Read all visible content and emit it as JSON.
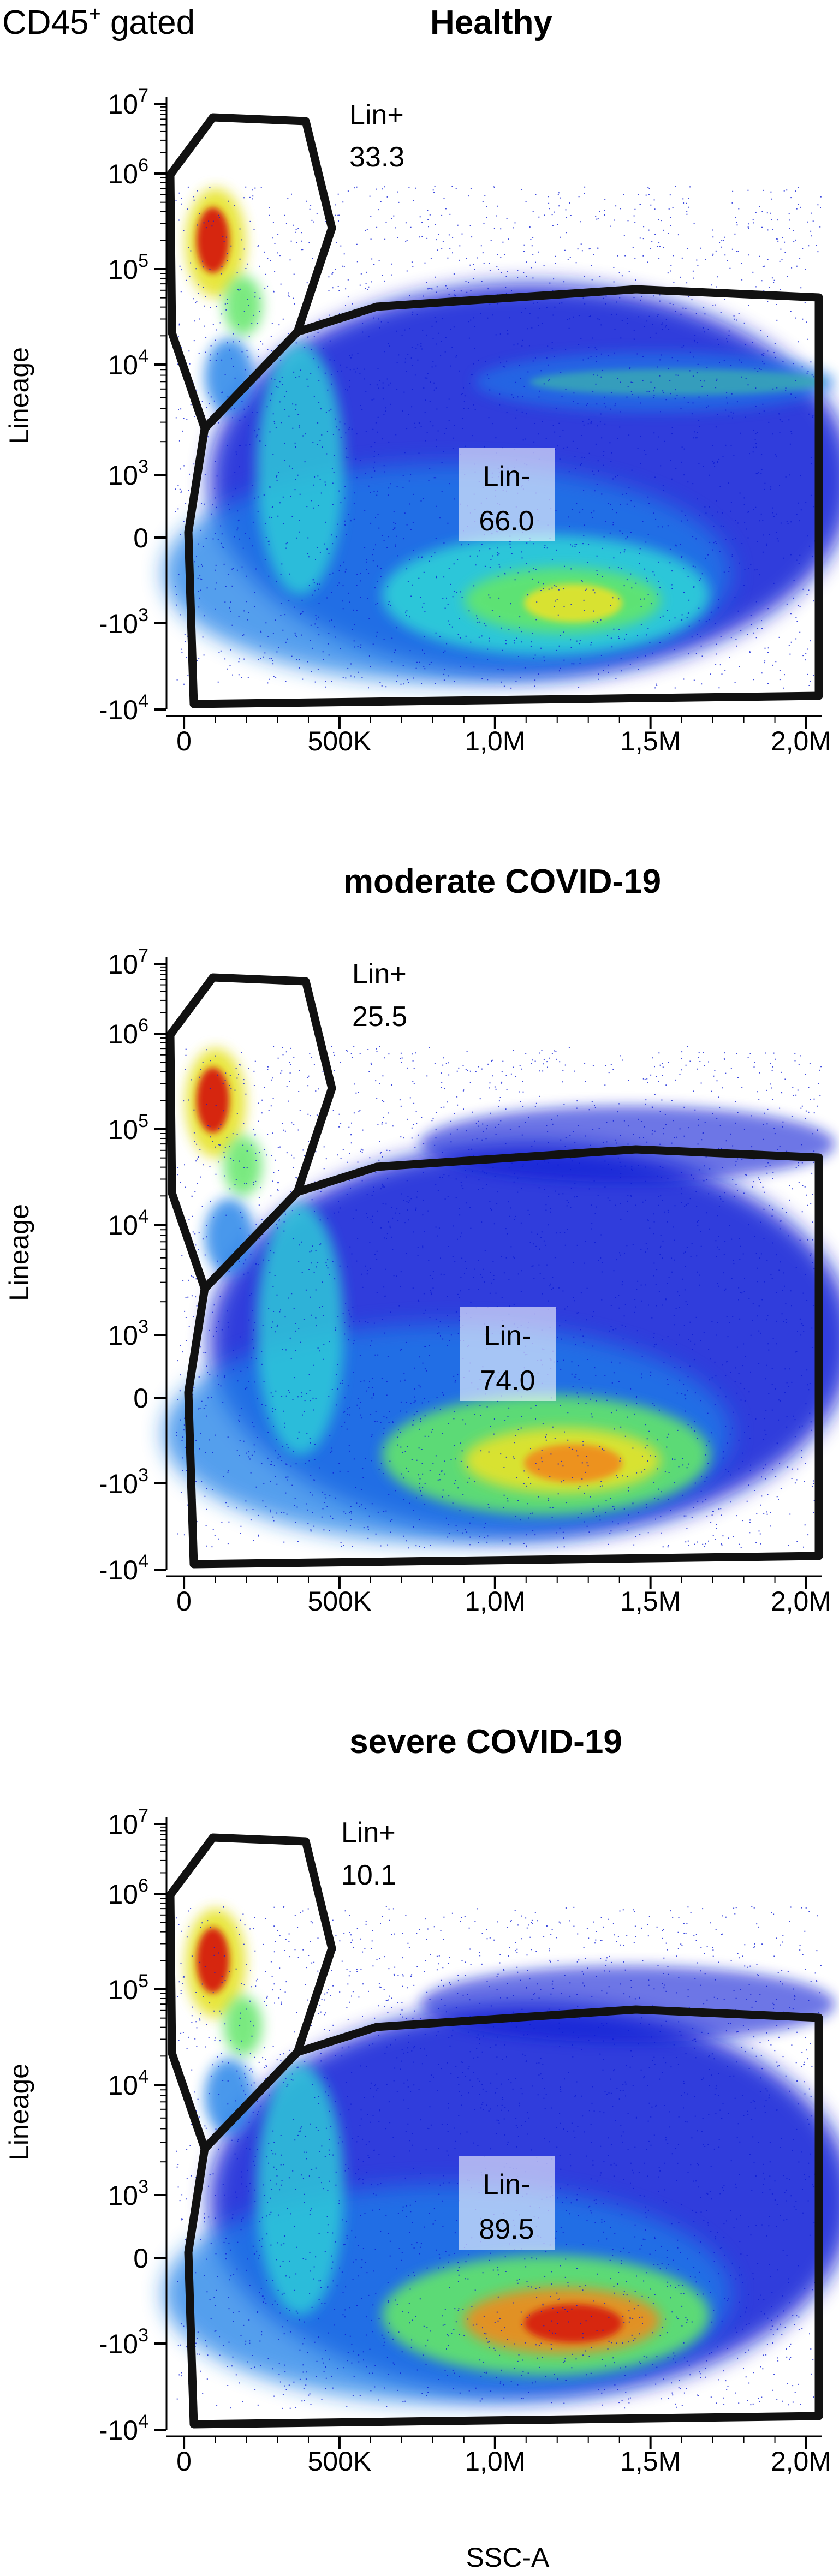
{
  "figure": {
    "corner_label": "CD45",
    "corner_label_sup": "+",
    "corner_label_suffix": " gated",
    "xlabel": "SSC-A",
    "ylabel": "Lineage"
  },
  "chart_data": [
    {
      "type": "scatter",
      "title": "Healthy",
      "xlabel": "",
      "ylabel": "Lineage",
      "x_scale": "linear",
      "y_scale": "biexponential",
      "xlim": [
        -30000,
        2050000
      ],
      "x_ticks": [
        {
          "value": 0,
          "label": "0"
        },
        {
          "value": 500000,
          "label": "500K"
        },
        {
          "value": 1000000,
          "label": "1,0M"
        },
        {
          "value": 1500000,
          "label": "1,5M"
        },
        {
          "value": 2000000,
          "label": "2,0M"
        }
      ],
      "y_ticks": [
        {
          "label": "-10",
          "sup": "4"
        },
        {
          "label": "-10",
          "sup": "3"
        },
        {
          "label": "0",
          "sup": ""
        },
        {
          "label": "10",
          "sup": "3"
        },
        {
          "label": "10",
          "sup": "4"
        },
        {
          "label": "10",
          "sup": "5"
        },
        {
          "label": "10",
          "sup": "6"
        },
        {
          "label": "10",
          "sup": "7"
        }
      ],
      "colormap": [
        "#0b1bd6",
        "#1d7fe8",
        "#2fd0d8",
        "#63e66a",
        "#e6e32a",
        "#f08a1c",
        "#d61a10"
      ],
      "gates": [
        {
          "name": "Lin+",
          "percent": "33.3"
        },
        {
          "name": "Lin-",
          "percent": "66.0"
        }
      ]
    },
    {
      "type": "scatter",
      "title": "moderate COVID-19",
      "xlabel": "",
      "ylabel": "Lineage",
      "x_scale": "linear",
      "y_scale": "biexponential",
      "xlim": [
        -30000,
        2050000
      ],
      "x_ticks": [
        {
          "value": 0,
          "label": "0"
        },
        {
          "value": 500000,
          "label": "500K"
        },
        {
          "value": 1000000,
          "label": "1,0M"
        },
        {
          "value": 1500000,
          "label": "1,5M"
        },
        {
          "value": 2000000,
          "label": "2,0M"
        }
      ],
      "y_ticks": [
        {
          "label": "-10",
          "sup": "4"
        },
        {
          "label": "-10",
          "sup": "3"
        },
        {
          "label": "0",
          "sup": ""
        },
        {
          "label": "10",
          "sup": "3"
        },
        {
          "label": "10",
          "sup": "4"
        },
        {
          "label": "10",
          "sup": "5"
        },
        {
          "label": "10",
          "sup": "6"
        },
        {
          "label": "10",
          "sup": "7"
        }
      ],
      "colormap": [
        "#0b1bd6",
        "#1d7fe8",
        "#2fd0d8",
        "#63e66a",
        "#e6e32a",
        "#f08a1c",
        "#d61a10"
      ],
      "gates": [
        {
          "name": "Lin+",
          "percent": "25.5"
        },
        {
          "name": "Lin-",
          "percent": "74.0"
        }
      ]
    },
    {
      "type": "scatter",
      "title": "severe COVID-19",
      "xlabel": "SSC-A",
      "ylabel": "Lineage",
      "x_scale": "linear",
      "y_scale": "biexponential",
      "xlim": [
        -30000,
        2050000
      ],
      "x_ticks": [
        {
          "value": 0,
          "label": "0"
        },
        {
          "value": 500000,
          "label": "500K"
        },
        {
          "value": 1000000,
          "label": "1,0M"
        },
        {
          "value": 1500000,
          "label": "1,5M"
        },
        {
          "value": 2000000,
          "label": "2,0M"
        }
      ],
      "y_ticks": [
        {
          "label": "-10",
          "sup": "4"
        },
        {
          "label": "-10",
          "sup": "3"
        },
        {
          "label": "0",
          "sup": ""
        },
        {
          "label": "10",
          "sup": "3"
        },
        {
          "label": "10",
          "sup": "4"
        },
        {
          "label": "10",
          "sup": "5"
        },
        {
          "label": "10",
          "sup": "6"
        },
        {
          "label": "10",
          "sup": "7"
        }
      ],
      "colormap": [
        "#0b1bd6",
        "#1d7fe8",
        "#2fd0d8",
        "#63e66a",
        "#e6e32a",
        "#f08a1c",
        "#d61a10"
      ],
      "gates": [
        {
          "name": "Lin+",
          "percent": "10.1"
        },
        {
          "name": "Lin-",
          "percent": "89.5"
        }
      ]
    }
  ]
}
